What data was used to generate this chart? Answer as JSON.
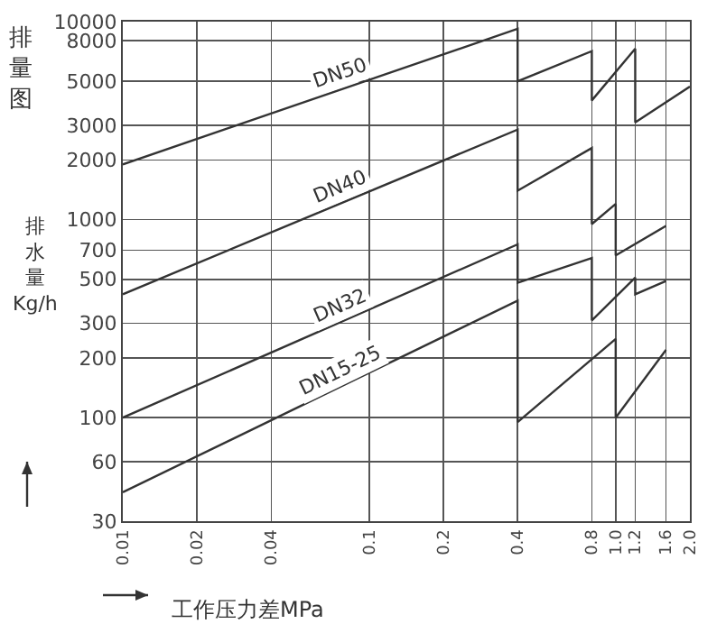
{
  "chart_data": {
    "type": "line",
    "title": "排量图",
    "xlabel": "工作压力差MPa",
    "ylabel": "排水量 Kg/h",
    "log": "xy",
    "grid": true,
    "legend": false,
    "marker": "none",
    "line_style": "solid",
    "xlim": [
      0.01,
      2.0
    ],
    "ylim": [
      30,
      10000
    ],
    "xticks": [
      0.01,
      0.02,
      0.04,
      0.1,
      0.2,
      0.4,
      0.8,
      {
        "value": 1,
        "label": "1.0"
      },
      1.2,
      1.6,
      {
        "value": 2,
        "label": "2.0"
      }
    ],
    "yticks": [
      30,
      60,
      100,
      200,
      300,
      500,
      700,
      1000,
      2000,
      3000,
      5000,
      8000,
      10000
    ],
    "series": [
      {
        "name": "DN50",
        "color": "#333333",
        "x": [
          0.01,
          0.4,
          0.4,
          0.8,
          0.8,
          1.2,
          1.2,
          2.0
        ],
        "values": [
          1900,
          9200,
          5000,
          7100,
          4000,
          7300,
          3100,
          4700
        ]
      },
      {
        "name": "DN40",
        "color": "#333333",
        "x": [
          0.01,
          0.4,
          0.4,
          0.8,
          0.8,
          1.0,
          1.0,
          1.6
        ],
        "values": [
          420,
          2850,
          1400,
          2300,
          950,
          1200,
          660,
          930
        ]
      },
      {
        "name": "DN32",
        "color": "#333333",
        "x": [
          0.01,
          0.4,
          0.4,
          0.8,
          0.8,
          1.2,
          1.2,
          1.6
        ],
        "values": [
          100,
          750,
          480,
          640,
          310,
          510,
          420,
          490
        ]
      },
      {
        "name": "DN15-25",
        "color": "#333333",
        "x": [
          0.01,
          0.4,
          0.4,
          1.0,
          1.0,
          1.6
        ],
        "values": [
          42,
          390,
          95,
          250,
          100,
          220
        ]
      }
    ]
  }
}
